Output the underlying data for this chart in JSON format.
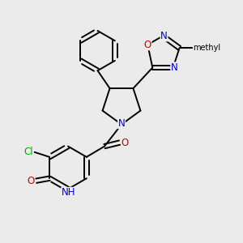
{
  "background_color": "#ebebeb",
  "figsize": [
    3.0,
    3.0
  ],
  "dpi": 100,
  "atom_colors": {
    "N": "#0000cc",
    "O": "#cc0000",
    "Cl": "#00aa00",
    "C": "#000000"
  },
  "bond_color": "#000000",
  "bond_width": 1.4,
  "font_size": 8.5,
  "methyl_label": "methyl"
}
